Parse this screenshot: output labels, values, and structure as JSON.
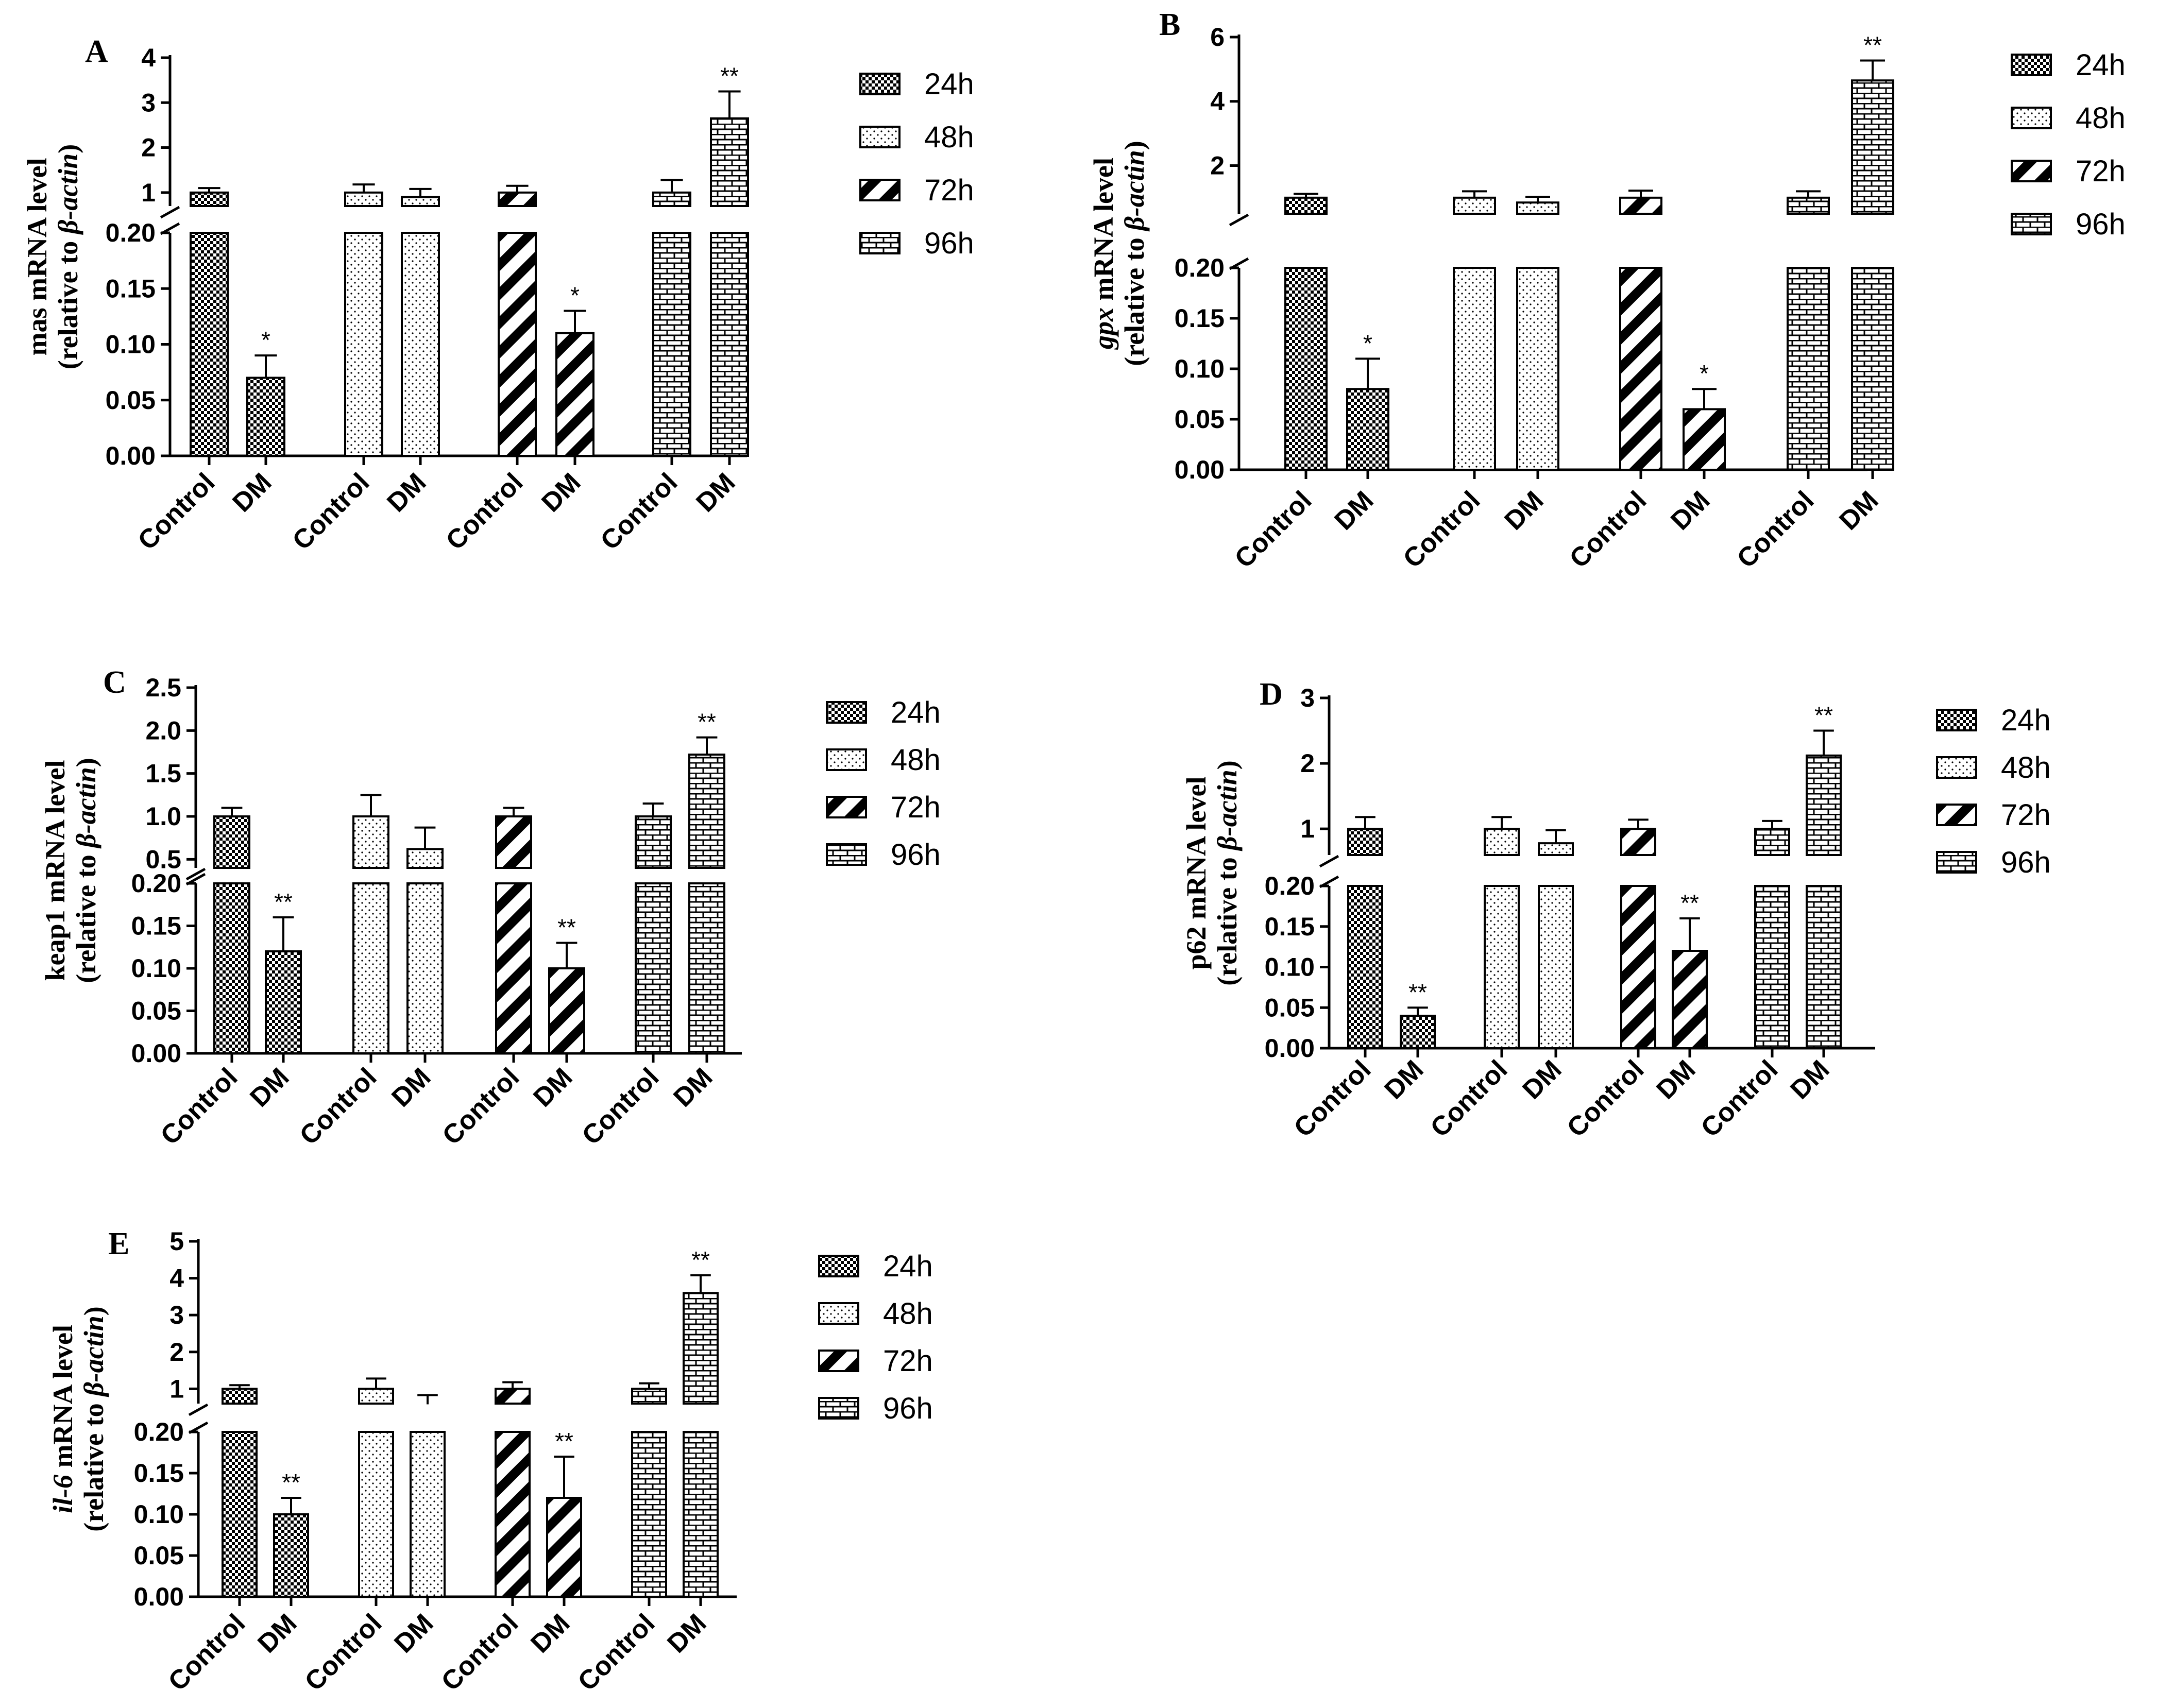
{
  "figure_title": "",
  "legend": [
    {
      "label": "24h",
      "pattern": "checker"
    },
    {
      "label": "48h",
      "pattern": "dots"
    },
    {
      "label": "72h",
      "pattern": "diagonal"
    },
    {
      "label": "96h",
      "pattern": "brick"
    }
  ],
  "colors": {
    "bar_fill": "#ffffff",
    "pattern_ink": "#000000",
    "axis": "#000000"
  },
  "chart_data": [
    {
      "panel": "A",
      "type": "bar",
      "ylabel_line1": "mas mRNA level",
      "ylabel_line2_prefix": "(relative to ",
      "ylabel_line2_italic": "β-actin",
      "ylabel_line2_suffix": ")",
      "categories": [
        "Control",
        "DM",
        "Control",
        "DM",
        "Control",
        "DM",
        "Control",
        "DM"
      ],
      "groups": [
        "24h",
        "24h",
        "48h",
        "48h",
        "72h",
        "72h",
        "96h",
        "96h"
      ],
      "values": [
        1.0,
        0.07,
        1.0,
        0.9,
        1.0,
        0.11,
        1.0,
        2.65
      ],
      "errors": [
        0.1,
        0.02,
        0.18,
        0.18,
        0.15,
        0.02,
        0.28,
        0.6
      ],
      "significance": [
        "",
        "*",
        "",
        "",
        "",
        "*",
        "",
        "**"
      ],
      "lower_range": [
        0,
        0.2
      ],
      "lower_ticks": [
        "0.00",
        "0.05",
        "0.10",
        "0.15",
        "0.20"
      ],
      "upper_range": [
        0.7,
        4
      ],
      "upper_ticks": [
        "1",
        "2",
        "3",
        "4"
      ]
    },
    {
      "panel": "B",
      "type": "bar",
      "ylabel_line1_italic": "gpx",
      "ylabel_line1": " mRNA level",
      "ylabel_line2_prefix": "(relative to ",
      "ylabel_line2_italic": "β-actin",
      "ylabel_line2_suffix": ")",
      "categories": [
        "Control",
        "DM",
        "Control",
        "DM",
        "Control",
        "DM",
        "Control",
        "DM"
      ],
      "groups": [
        "24h",
        "24h",
        "48h",
        "48h",
        "72h",
        "72h",
        "96h",
        "96h"
      ],
      "values": [
        1.0,
        0.08,
        1.0,
        0.85,
        1.0,
        0.06,
        1.0,
        4.65
      ],
      "errors": [
        0.12,
        0.03,
        0.2,
        0.18,
        0.22,
        0.02,
        0.2,
        0.62
      ],
      "significance": [
        "",
        "*",
        "",
        "",
        "",
        "*",
        "",
        "**"
      ],
      "lower_range": [
        0,
        0.2
      ],
      "lower_ticks": [
        "0.00",
        "0.05",
        "0.10",
        "0.15",
        "0.20"
      ],
      "upper_range": [
        0.5,
        6
      ],
      "upper_ticks": [
        "2",
        "4",
        "6"
      ]
    },
    {
      "panel": "C",
      "type": "bar",
      "ylabel_line1": "keap1 mRNA level",
      "ylabel_line2_prefix": "(relative to ",
      "ylabel_line2_italic": "β-actin",
      "ylabel_line2_suffix": ")",
      "categories": [
        "Control",
        "DM",
        "Control",
        "DM",
        "Control",
        "DM",
        "Control",
        "DM"
      ],
      "groups": [
        "24h",
        "24h",
        "48h",
        "48h",
        "72h",
        "72h",
        "96h",
        "96h"
      ],
      "values": [
        1.0,
        0.12,
        1.0,
        0.62,
        1.0,
        0.1,
        1.0,
        1.72
      ],
      "errors": [
        0.1,
        0.04,
        0.25,
        0.25,
        0.1,
        0.03,
        0.15,
        0.2
      ],
      "significance": [
        "",
        "**",
        "",
        "",
        "",
        "**",
        "",
        "**"
      ],
      "lower_range": [
        0,
        0.2
      ],
      "lower_ticks": [
        "0.00",
        "0.05",
        "0.10",
        "0.15",
        "0.20"
      ],
      "upper_range": [
        0.4,
        2.5
      ],
      "upper_ticks": [
        "0.5",
        "1.0",
        "1.5",
        "2.0",
        "2.5"
      ]
    },
    {
      "panel": "D",
      "type": "bar",
      "ylabel_line1": "p62 mRNA level",
      "ylabel_line2_prefix": "(relative to ",
      "ylabel_line2_italic": "β-actin",
      "ylabel_line2_suffix": ")",
      "categories": [
        "Control",
        "DM",
        "Control",
        "DM",
        "Control",
        "DM",
        "Control",
        "DM"
      ],
      "groups": [
        "24h",
        "24h",
        "48h",
        "48h",
        "72h",
        "72h",
        "96h",
        "96h"
      ],
      "values": [
        1.0,
        0.04,
        1.0,
        0.78,
        1.0,
        0.12,
        1.0,
        2.12
      ],
      "errors": [
        0.18,
        0.01,
        0.18,
        0.2,
        0.14,
        0.04,
        0.12,
        0.38
      ],
      "significance": [
        "",
        "**",
        "",
        "",
        "",
        "**",
        "",
        "**"
      ],
      "lower_range": [
        0,
        0.2
      ],
      "lower_ticks": [
        "0.00",
        "0.05",
        "0.10",
        "0.15",
        "0.20"
      ],
      "upper_range": [
        0.6,
        3
      ],
      "upper_ticks": [
        "1",
        "2",
        "3"
      ]
    },
    {
      "panel": "E",
      "type": "bar",
      "ylabel_line1_italic": "il-6",
      "ylabel_line1": " mRNA level",
      "ylabel_line2_prefix": "(relative to ",
      "ylabel_line2_italic": "β-actin",
      "ylabel_line2_suffix": ")",
      "categories": [
        "Control",
        "DM",
        "Control",
        "DM",
        "Control",
        "DM",
        "Control",
        "DM"
      ],
      "groups": [
        "24h",
        "24h",
        "48h",
        "48h",
        "72h",
        "72h",
        "96h",
        "96h"
      ],
      "values": [
        1.0,
        0.1,
        1.0,
        0.58,
        1.0,
        0.12,
        1.0,
        3.6
      ],
      "errors": [
        0.1,
        0.02,
        0.28,
        0.25,
        0.18,
        0.05,
        0.15,
        0.48
      ],
      "significance": [
        "",
        "**",
        "",
        "",
        "",
        "**",
        "",
        "**"
      ],
      "lower_range": [
        0,
        0.2
      ],
      "lower_ticks": [
        "0.00",
        "0.05",
        "0.10",
        "0.15",
        "0.20"
      ],
      "upper_range": [
        0.6,
        5
      ],
      "upper_ticks": [
        "1",
        "2",
        "3",
        "4",
        "5"
      ]
    }
  ]
}
